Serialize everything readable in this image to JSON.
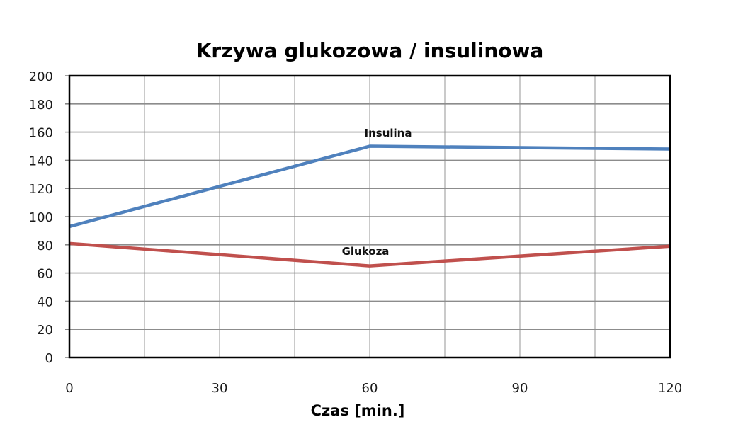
{
  "chart_data": {
    "type": "line",
    "title": "Krzywa glukozowa / insulinowa",
    "xlabel": "Czas [min.]",
    "ylabel": "",
    "x": [
      0,
      60,
      120
    ],
    "xticks": [
      0,
      30,
      60,
      90,
      120
    ],
    "x_gridlines_every": 15,
    "xlim": [
      0,
      120
    ],
    "yticks": [
      0,
      20,
      40,
      60,
      80,
      100,
      120,
      140,
      160,
      180,
      200
    ],
    "ylim": [
      0,
      200
    ],
    "grid": true,
    "legend": "none (inline series labels)",
    "series": [
      {
        "name": "Insulina",
        "color": "#4F81BD",
        "values": [
          93,
          150,
          148
        ],
        "label_at_x": 60
      },
      {
        "name": "Glukoza",
        "color": "#C0504D",
        "values": [
          81,
          65,
          79
        ],
        "label_at_x": 60
      }
    ]
  },
  "labels": {
    "title": "Krzywa glukozowa / insulinowa",
    "xlabel": "Czas [min.]",
    "insulina": "Insulina",
    "glukoza": "Glukoza",
    "xticks": [
      "0",
      "30",
      "60",
      "90",
      "120"
    ],
    "yticks": [
      "0",
      "20",
      "40",
      "60",
      "80",
      "100",
      "120",
      "140",
      "160",
      "180",
      "200"
    ]
  }
}
